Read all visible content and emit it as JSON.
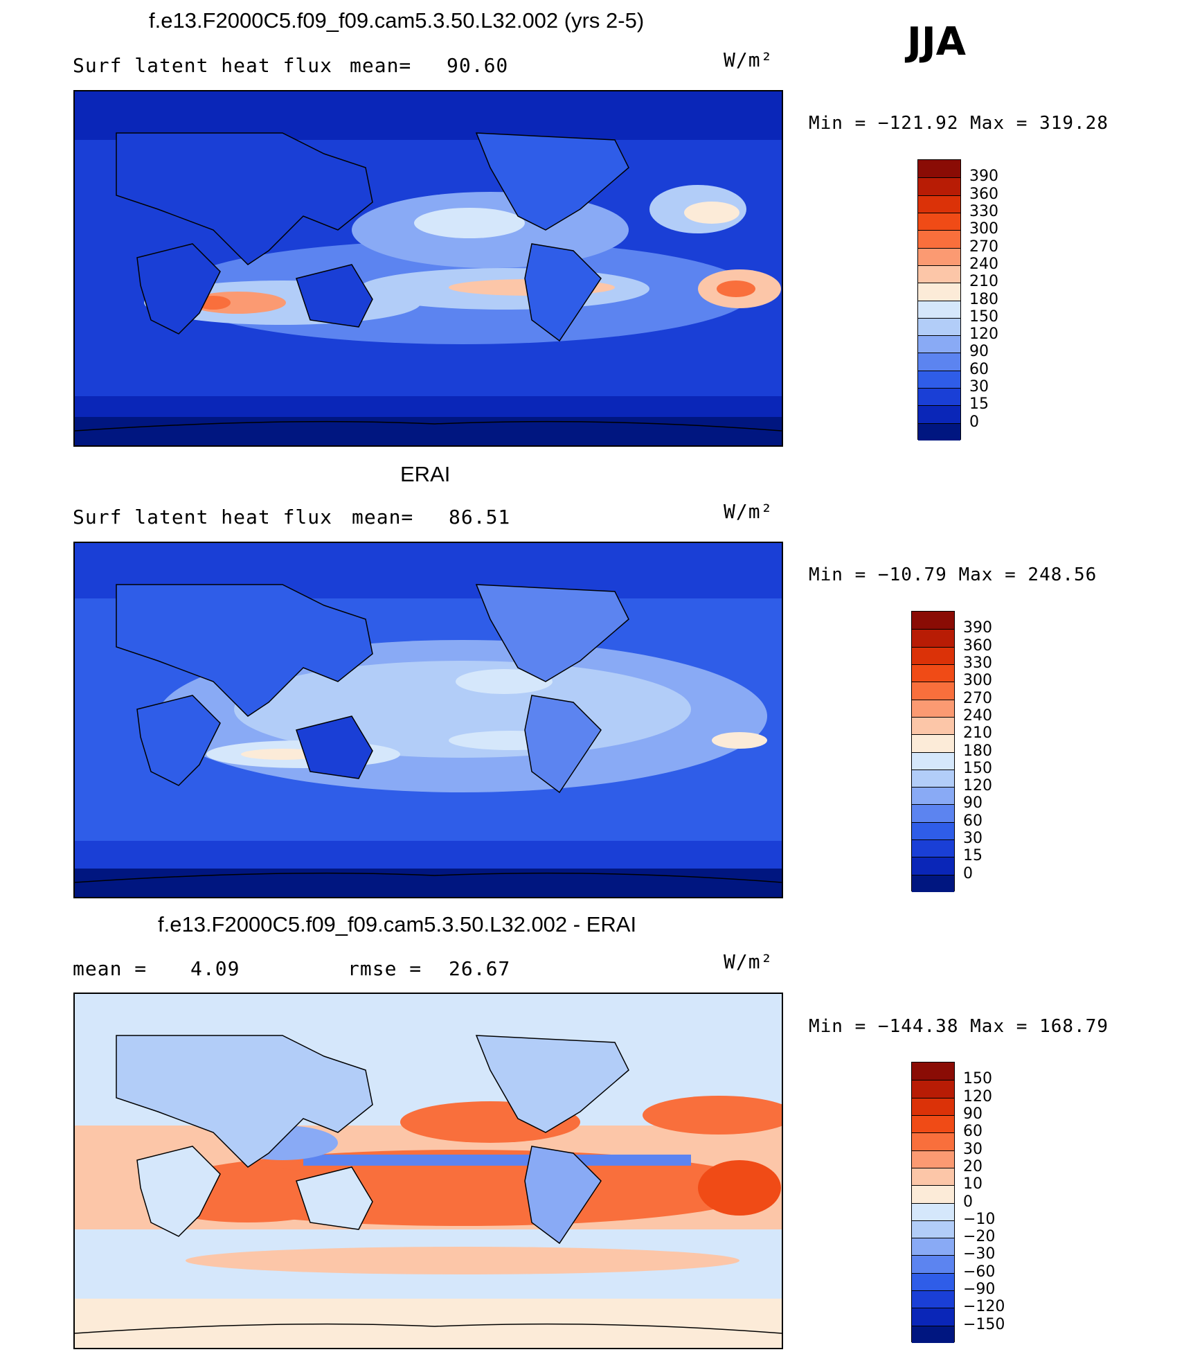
{
  "season": "JJA",
  "panels": [
    {
      "id": "model",
      "title": "f.e13.F2000C5.f09_f09.cam5.3.50.L32.002 (yrs 2-5)",
      "left_label": "Surf latent heat flux",
      "stat_label": "mean=",
      "stat_value": "90.60",
      "units": "W/m²",
      "minmax": "Min = −121.92 Max = 319.28",
      "colorbar": {
        "levels": [
          "390",
          "360",
          "330",
          "300",
          "270",
          "240",
          "210",
          "180",
          "150",
          "120",
          "90",
          "60",
          "30",
          "15",
          "0"
        ],
        "colors": [
          "#8a0c05",
          "#b81c05",
          "#db3208",
          "#f04b16",
          "#f96f3c",
          "#fb9a72",
          "#fcc6a8",
          "#fcebd8",
          "#d5e7fb",
          "#b2cdf8",
          "#89aaf5",
          "#5c84f0",
          "#2f5de8",
          "#1a3fd6",
          "#0a26b8",
          "#001680"
        ]
      }
    },
    {
      "id": "obs",
      "title": "ERAI",
      "left_label": "Surf latent heat flux",
      "stat_label": "mean=",
      "stat_value": "86.51",
      "units": "W/m²",
      "minmax": "Min = −10.79 Max = 248.56",
      "colorbar": {
        "levels": [
          "390",
          "360",
          "330",
          "300",
          "270",
          "240",
          "210",
          "180",
          "150",
          "120",
          "90",
          "60",
          "30",
          "15",
          "0"
        ],
        "colors": [
          "#8a0c05",
          "#b81c05",
          "#db3208",
          "#f04b16",
          "#f96f3c",
          "#fb9a72",
          "#fcc6a8",
          "#fcebd8",
          "#d5e7fb",
          "#b2cdf8",
          "#89aaf5",
          "#5c84f0",
          "#2f5de8",
          "#1a3fd6",
          "#0a26b8",
          "#001680"
        ]
      }
    },
    {
      "id": "diff",
      "title": "f.e13.F2000C5.f09_f09.cam5.3.50.L32.002 - ERAI",
      "left_label": "mean =",
      "left_value": "4.09",
      "stat_label": "rmse =",
      "stat_value": "26.67",
      "units": "W/m²",
      "minmax": "Min = −144.38 Max = 168.79",
      "colorbar": {
        "levels": [
          "150",
          "120",
          "90",
          "60",
          "30",
          "20",
          "10",
          "0",
          "−10",
          "−20",
          "−30",
          "−60",
          "−90",
          "−120",
          "−150"
        ],
        "colors": [
          "#8a0c05",
          "#b81c05",
          "#db3208",
          "#f04b16",
          "#f96f3c",
          "#fb9a72",
          "#fcc6a8",
          "#fcebd8",
          "#d5e7fb",
          "#b2cdf8",
          "#89aaf5",
          "#5c84f0",
          "#2f5de8",
          "#1a3fd6",
          "#0a26b8",
          "#001680"
        ]
      }
    }
  ]
}
